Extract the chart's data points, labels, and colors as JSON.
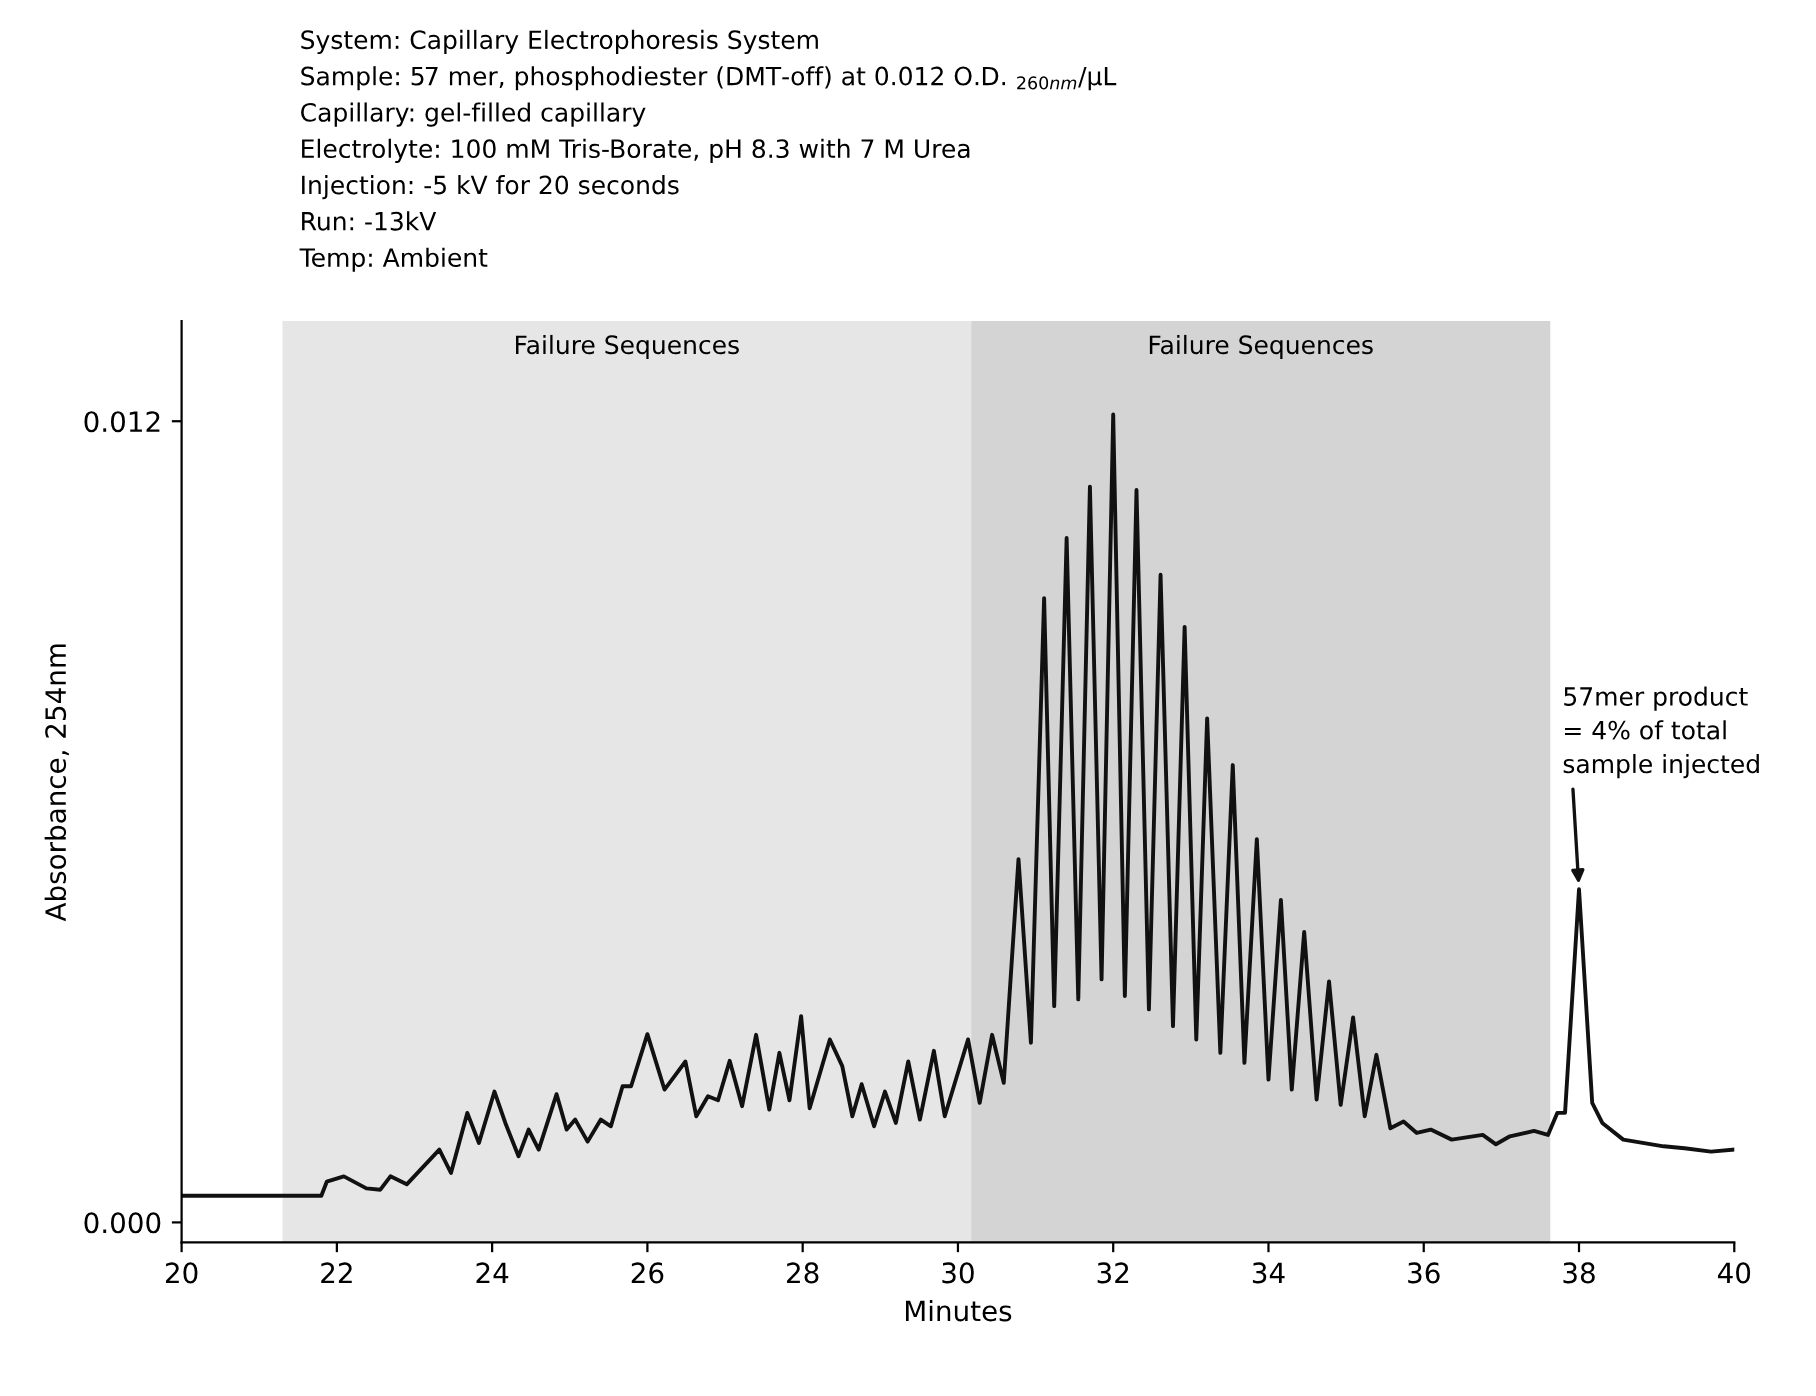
{
  "chart_data": {
    "type": "line",
    "xlabel": "Minutes",
    "ylabel": "Absorbance, 254nm",
    "xlim": [
      20,
      40
    ],
    "xticks": [
      20,
      22,
      24,
      26,
      28,
      30,
      32,
      34,
      36,
      38,
      40
    ],
    "ylim": [
      -0.0003,
      0.0135
    ],
    "yticks": [
      {
        "value": 0,
        "label": "0.000"
      },
      {
        "value": 0.012,
        "label": "0.012"
      }
    ],
    "grid": false,
    "marker": "none",
    "line_style": "solid",
    "series": [
      {
        "color": "#111111",
        "x": [
          20,
          21.8,
          21.87,
          22.09,
          22.38,
          22.56,
          22.69,
          22.9,
          23.32,
          23.47,
          23.68,
          23.83,
          24.03,
          24.17,
          24.34,
          24.47,
          24.6,
          24.83,
          24.96,
          25.07,
          25.23,
          25.4,
          25.53,
          25.68,
          25.79,
          26.0,
          26.22,
          26.35,
          26.49,
          26.63,
          26.78,
          26.91,
          27.06,
          27.22,
          27.4,
          27.57,
          27.7,
          27.83,
          27.98,
          28.09,
          28.35,
          28.51,
          28.64,
          28.76,
          28.92,
          29.06,
          29.2,
          29.36,
          29.51,
          29.69,
          29.83,
          30.13,
          30.28,
          30.44,
          30.59,
          30.78,
          30.94,
          31.11,
          31.24,
          31.4,
          31.55,
          31.7,
          31.85,
          32.0,
          32.15,
          32.3,
          32.46,
          32.61,
          32.77,
          32.92,
          33.07,
          33.21,
          33.38,
          33.54,
          33.69,
          33.85,
          34.0,
          34.16,
          34.3,
          34.46,
          34.62,
          34.78,
          34.93,
          35.09,
          35.24,
          35.39,
          35.57,
          35.74,
          35.91,
          36.09,
          36.36,
          36.76,
          36.93,
          37.11,
          37.42,
          37.6,
          37.72,
          37.82,
          38.0,
          38.17,
          38.3,
          38.57,
          39.09,
          39.36,
          39.7,
          40
        ],
        "values": [
          0.0004,
          0.0004,
          0.00061,
          0.00069,
          0.00051,
          0.00049,
          0.00069,
          0.00057,
          0.00109,
          0.00074,
          0.00164,
          0.00119,
          0.00196,
          0.00149,
          0.00099,
          0.00139,
          0.00109,
          0.00192,
          0.00139,
          0.00154,
          0.00121,
          0.00154,
          0.00144,
          0.00204,
          0.00204,
          0.00282,
          0.00199,
          0.00219,
          0.00241,
          0.00159,
          0.00189,
          0.00183,
          0.00242,
          0.00174,
          0.00281,
          0.00169,
          0.00254,
          0.00183,
          0.00309,
          0.00171,
          0.00274,
          0.00234,
          0.00159,
          0.00207,
          0.00144,
          0.00196,
          0.00149,
          0.00241,
          0.00154,
          0.00257,
          0.00159,
          0.00274,
          0.00179,
          0.00281,
          0.00209,
          0.00544,
          0.00269,
          0.00935,
          0.00324,
          0.01025,
          0.00334,
          0.01102,
          0.00364,
          0.0121,
          0.00339,
          0.01097,
          0.00319,
          0.0097,
          0.00294,
          0.00892,
          0.00274,
          0.00755,
          0.00254,
          0.00685,
          0.00239,
          0.00574,
          0.00214,
          0.00483,
          0.00199,
          0.00435,
          0.00184,
          0.00361,
          0.00176,
          0.00307,
          0.00159,
          0.00251,
          0.00141,
          0.00151,
          0.00134,
          0.00139,
          0.00124,
          0.00131,
          0.00117,
          0.00129,
          0.00137,
          0.00131,
          0.00164,
          0.00164,
          0.00499,
          0.00179,
          0.00149,
          0.00124,
          0.00114,
          0.00111,
          0.00106,
          0.00109
        ]
      }
    ],
    "bands": [
      {
        "axis": "x",
        "from": 21.3,
        "to": 30.17,
        "label": "Failure Sequences",
        "color": "#e6e6e6"
      },
      {
        "axis": "x",
        "from": 30.17,
        "to": 37.63,
        "label": "Failure Sequences",
        "color": "#d4d4d4"
      }
    ],
    "annotations": [
      "System: Capillary Electrophoresis System",
      "Sample: 57 mer, phosphodiester (DMT-off) at 0.012 O.D. $_{260nm}$/μL",
      "Capillary: gel-filled capillary",
      "Electrolyte: 100 mM Tris-Borate, pH 8.3 with 7 M Urea",
      "Injection: -5 kV for 20 seconds",
      "Run: -13kV",
      "Temp: Ambient",
      {
        "text": "57mer product\n= 4% of total\nsample injected",
        "x": 38.0,
        "y": 0.00499
      }
    ]
  }
}
